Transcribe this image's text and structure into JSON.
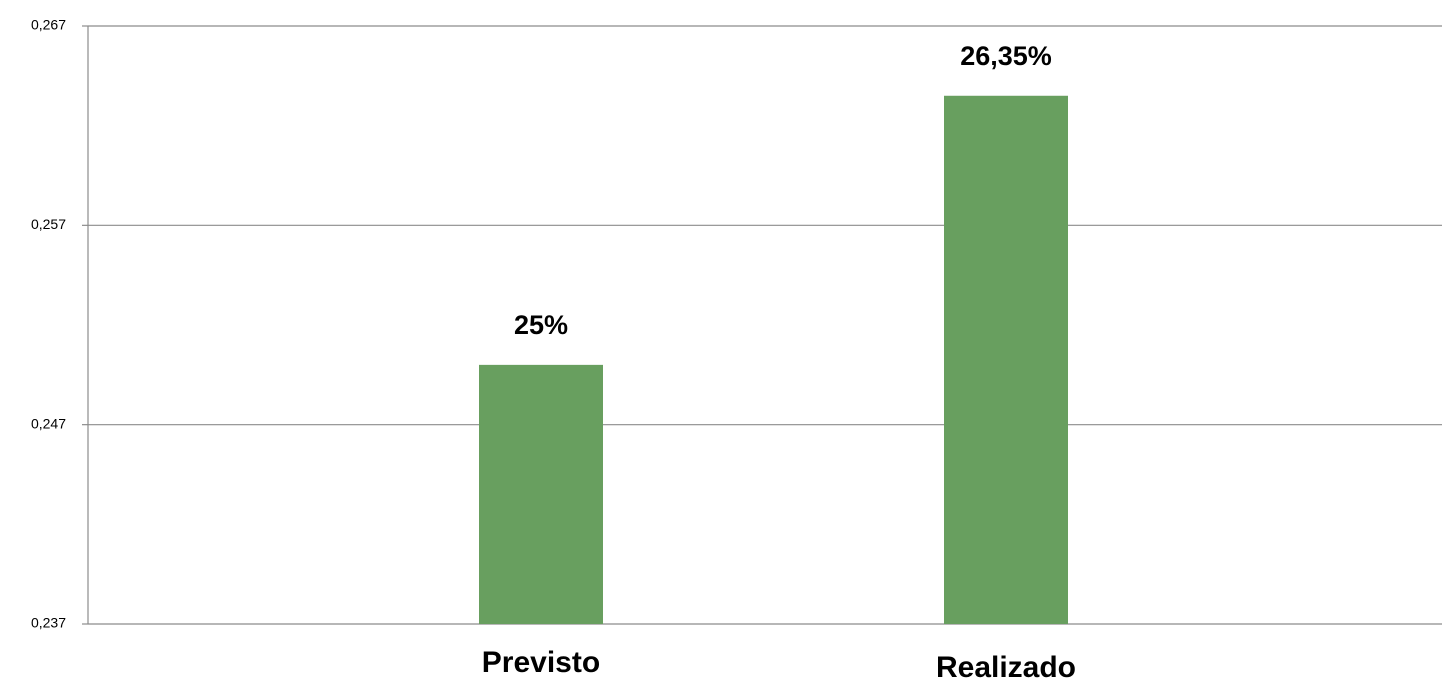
{
  "chart_data": {
    "type": "bar",
    "categories": [
      "Previsto",
      "Realizado"
    ],
    "values": [
      0.25,
      0.2635
    ],
    "value_labels": [
      "25%",
      "26,35%"
    ],
    "color": "#689f5f",
    "ylim": [
      0.237,
      0.267
    ],
    "yticks": [
      {
        "value": 0.237,
        "label": "0,237"
      },
      {
        "value": 0.247,
        "label": "0,247"
      },
      {
        "value": 0.257,
        "label": "0,257"
      },
      {
        "value": 0.267,
        "label": "0,267"
      }
    ],
    "grid": true
  }
}
